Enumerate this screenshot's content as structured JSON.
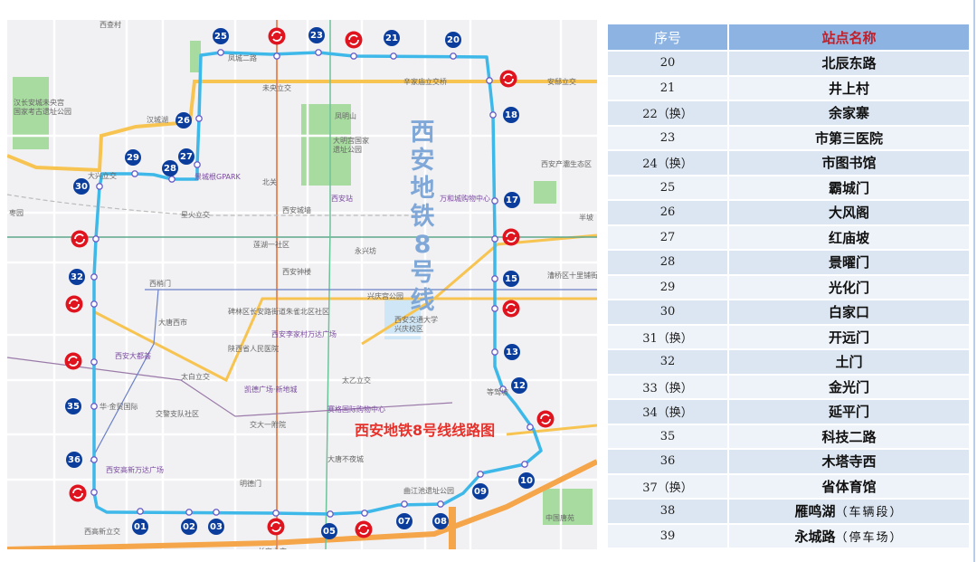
{
  "map": {
    "vertical_title": [
      "西",
      "安",
      "地",
      "铁",
      "8",
      "号",
      "线"
    ],
    "route_title": "西安地铁8号线线路图",
    "line_color": "#3db8e8",
    "badge_color": "#0b3d9c",
    "transfer_color": "#e0141e",
    "stations": [
      "01",
      "02",
      "03",
      "05",
      "07",
      "08",
      "09",
      "10",
      "12",
      "13",
      "15",
      "17",
      "18",
      "20",
      "21",
      "23",
      "25",
      "26",
      "27",
      "28",
      "29",
      "30",
      "32",
      "35",
      "36"
    ],
    "transfer_icon": "transfer-icon",
    "labels": [
      "西查村",
      "凤城二路",
      "未央立交",
      "汉长安城未央宫",
      "国家考古遗址公园",
      "汉城湖",
      "大兴立交",
      "星火立交",
      "北关",
      "枣园",
      "莲湖一社区",
      "西梢门",
      "辛家庙立交桥",
      "凤明山",
      "大明宫国家",
      "遗址公园",
      "西安站",
      "万和城购物中心",
      "永兴坊",
      "西安产灞生态区",
      "西安城墙",
      "西安钟楼",
      "兴庆宫公园",
      "西安交通大学",
      "兴庆校区",
      "大唐西市",
      "陕西省人民医院",
      "西安大都荟",
      "太白立交",
      "凯德广场·新地城",
      "华·金贸国际",
      "交警支队社区",
      "交大一附院",
      "赛格国际购物中心",
      "西安李家村万达广场",
      "太乙立交",
      "西安高新万达广场",
      "明德门",
      "西高新立交",
      "大唐不夜城",
      "曲江池遗址公园",
      "中国唐苑",
      "等驾坡",
      "半坡",
      "长安立交",
      "安邸立交",
      "碑林区长安路街道朱雀北区社区",
      "景城根GPARK",
      "漕桥区十里铺街道龙湖蓝湾社区"
    ]
  },
  "table": {
    "headers": [
      "序号",
      "站点名称"
    ],
    "header_colors": {
      "index": "#ffffff",
      "name": "#c0202a",
      "background": "#8db3e2"
    },
    "rows": [
      {
        "no": "20",
        "name": "北辰东路",
        "note": ""
      },
      {
        "no": "21",
        "name": "井上村",
        "note": ""
      },
      {
        "no": "22（换）",
        "name": "余家寨",
        "note": ""
      },
      {
        "no": "23",
        "name": "市第三医院",
        "note": ""
      },
      {
        "no": "24（换）",
        "name": "市图书馆",
        "note": ""
      },
      {
        "no": "25",
        "name": "霸城门",
        "note": ""
      },
      {
        "no": "26",
        "name": "大风阁",
        "note": ""
      },
      {
        "no": "27",
        "name": "红庙坡",
        "note": ""
      },
      {
        "no": "28",
        "name": "景曜门",
        "note": ""
      },
      {
        "no": "29",
        "name": "光化门",
        "note": ""
      },
      {
        "no": "30",
        "name": "白家口",
        "note": ""
      },
      {
        "no": "31（换）",
        "name": "开远门",
        "note": ""
      },
      {
        "no": "32",
        "name": "土门",
        "note": ""
      },
      {
        "no": "33（换）",
        "name": "金光门",
        "note": ""
      },
      {
        "no": "34（换）",
        "name": "延平门",
        "note": ""
      },
      {
        "no": "35",
        "name": "科技二路",
        "note": ""
      },
      {
        "no": "36",
        "name": "木塔寺西",
        "note": ""
      },
      {
        "no": "37（换）",
        "name": "省体育馆",
        "note": ""
      },
      {
        "no": "38",
        "name": "雁鸣湖",
        "note": "（车辆段）"
      },
      {
        "no": "39",
        "name": "永城路",
        "note": "（停车场）"
      }
    ]
  }
}
